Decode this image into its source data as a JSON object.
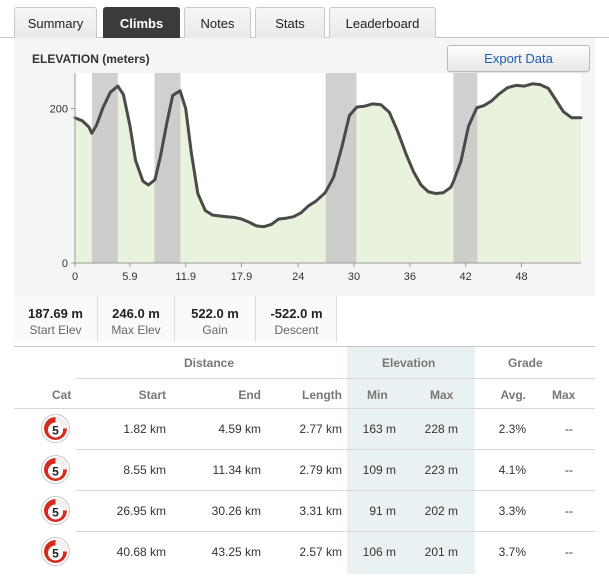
{
  "tabs": [
    {
      "label": "Summary",
      "active": false
    },
    {
      "label": "Climbs",
      "active": true
    },
    {
      "label": "Notes",
      "active": false
    },
    {
      "label": "Stats",
      "active": false
    },
    {
      "label": "Leaderboard",
      "active": false
    }
  ],
  "chart": {
    "title": "ELEVATION (meters)",
    "export_label": "Export Data"
  },
  "chart_data": {
    "type": "area",
    "title": "ELEVATION (meters)",
    "xlabel": "",
    "ylabel": "",
    "xlim": [
      0,
      54.4
    ],
    "ylim": [
      0,
      246
    ],
    "x_ticks": [
      "0",
      "5.9",
      "11.9",
      "17.9",
      "24",
      "30",
      "36",
      "42",
      "48"
    ],
    "x_tick_values": [
      0,
      5.9,
      11.9,
      17.9,
      24,
      30,
      36,
      42,
      48
    ],
    "y_ticks": [
      "0",
      "200"
    ],
    "y_tick_values": [
      0,
      200
    ],
    "grid": false,
    "colors": {
      "line": "#4a4a4a",
      "fill": "#e8f2dc",
      "climb_band": "#c8c8c8"
    },
    "climb_ranges_km": [
      [
        1.82,
        4.59
      ],
      [
        8.55,
        11.34
      ],
      [
        26.95,
        30.26
      ],
      [
        40.68,
        43.25
      ]
    ],
    "series": [
      {
        "x": [
          0,
          0.8,
          1.5,
          1.8,
          2.3,
          3.0,
          3.8,
          4.6,
          5.2,
          5.9,
          6.5,
          7.3,
          7.9,
          8.6,
          9.2,
          9.9,
          10.5,
          11.3,
          11.9,
          12.5,
          13.2,
          14.0,
          14.8,
          15.5,
          16.3,
          17.1,
          17.9,
          18.7,
          19.5,
          20.3,
          21.1,
          21.9,
          22.7,
          23.5,
          24.3,
          25.1,
          25.9,
          26.9,
          27.8,
          28.7,
          29.5,
          30.3,
          31.1,
          32.0,
          32.9,
          33.8,
          34.7,
          35.6,
          36.4,
          37.2,
          38.0,
          38.8,
          39.6,
          40.4,
          40.7,
          41.5,
          42.3,
          43.2,
          44.0,
          44.8,
          45.6,
          46.5,
          47.4,
          48.3,
          49.2,
          50.0,
          50.9,
          51.7,
          52.5,
          53.4,
          54.4
        ],
        "y": [
          188,
          184,
          176,
          168,
          178,
          201,
          221,
          229,
          218,
          178,
          133,
          106,
          101,
          108,
          139,
          183,
          217,
          223,
          200,
          143,
          90,
          68,
          62,
          61,
          60,
          59,
          57,
          53,
          48,
          47,
          50,
          57,
          58,
          60,
          65,
          74,
          80,
          91,
          111,
          151,
          191,
          202,
          203,
          206,
          205,
          195,
          170,
          141,
          118,
          101,
          92,
          90,
          91,
          98,
          106,
          132,
          177,
          201,
          204,
          210,
          219,
          227,
          230,
          229,
          232,
          231,
          226,
          211,
          196,
          188,
          188
        ]
      }
    ]
  },
  "stats": [
    {
      "value": "187.69 m",
      "label": "Start Elev"
    },
    {
      "value": "246.0 m",
      "label": "Max Elev"
    },
    {
      "value": "522.0 m",
      "label": "Gain"
    },
    {
      "value": "-522.0 m",
      "label": "Descent"
    }
  ],
  "table": {
    "group_headers": {
      "distance": "Distance",
      "elevation": "Elevation",
      "grade": "Grade"
    },
    "columns": {
      "cat": "Cat",
      "start": "Start",
      "end": "End",
      "length": "Length",
      "min": "Min",
      "max": "Max",
      "avg": "Avg.",
      "gmax": "Max"
    },
    "rows": [
      {
        "cat": "5",
        "start": "1.82 km",
        "end": "4.59 km",
        "length": "2.77 km",
        "min": "163 m",
        "max": "228 m",
        "avg": "2.3%",
        "gmax": "--"
      },
      {
        "cat": "5",
        "start": "8.55 km",
        "end": "11.34 km",
        "length": "2.79 km",
        "min": "109 m",
        "max": "223 m",
        "avg": "4.1%",
        "gmax": "--"
      },
      {
        "cat": "5",
        "start": "26.95 km",
        "end": "30.26 km",
        "length": "3.31 km",
        "min": "91 m",
        "max": "202 m",
        "avg": "3.3%",
        "gmax": "--"
      },
      {
        "cat": "5",
        "start": "40.68 km",
        "end": "43.25 km",
        "length": "2.57 km",
        "min": "106 m",
        "max": "201 m",
        "avg": "3.7%",
        "gmax": "--"
      }
    ]
  }
}
